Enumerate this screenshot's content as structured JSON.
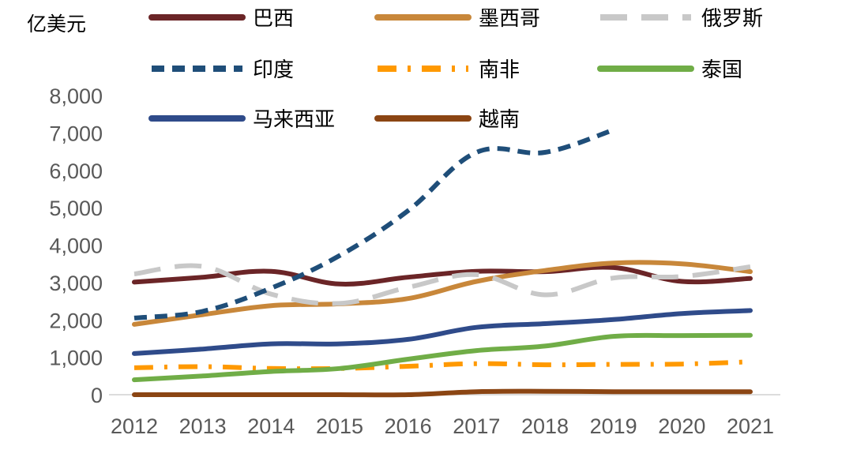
{
  "chart_data": {
    "type": "line",
    "title": "",
    "unit_label": "亿美元",
    "xlabel": "",
    "ylabel": "",
    "x": [
      "2012",
      "2013",
      "2014",
      "2015",
      "2016",
      "2017",
      "2018",
      "2019",
      "2020",
      "2021"
    ],
    "ylim": [
      0,
      8000
    ],
    "yticks": [
      0,
      1000,
      2000,
      3000,
      4000,
      5000,
      6000,
      7000,
      8000
    ],
    "ytick_labels": [
      "0",
      "1,000",
      "2,000",
      "3,000",
      "4,000",
      "5,000",
      "6,000",
      "7,000",
      "8,000"
    ],
    "grid": false,
    "legend_position": "top",
    "series": [
      {
        "name": "巴西",
        "color": "#6b2527",
        "dash": "solid",
        "values": [
          3010,
          3140,
          3300,
          2960,
          3140,
          3300,
          3290,
          3400,
          3030,
          3110
        ]
      },
      {
        "name": "墨西哥",
        "color": "#c8873a",
        "dash": "solid",
        "values": [
          1880,
          2140,
          2380,
          2430,
          2570,
          3030,
          3320,
          3520,
          3500,
          3290
        ]
      },
      {
        "name": "俄罗斯",
        "color": "#c8c8c8",
        "dash": "longdash",
        "values": [
          3230,
          3430,
          2690,
          2440,
          2870,
          3210,
          2670,
          3120,
          3160,
          3420
        ]
      },
      {
        "name": "印度",
        "color": "#1f4e79",
        "dash": "dash",
        "values": [
          2050,
          2230,
          2850,
          3720,
          4920,
          6480,
          6480,
          7080,
          null,
          null
        ]
      },
      {
        "name": "南非",
        "color": "#ff9900",
        "dash": "dashdot",
        "values": [
          720,
          750,
          700,
          700,
          760,
          830,
          800,
          810,
          820,
          880
        ]
      },
      {
        "name": "泰国",
        "color": "#70ad47",
        "dash": "solid",
        "values": [
          400,
          500,
          620,
          700,
          950,
          1180,
          1300,
          1560,
          1580,
          1590
        ]
      },
      {
        "name": "马来西亚",
        "color": "#2f4b8a",
        "dash": "solid",
        "values": [
          1100,
          1220,
          1360,
          1360,
          1480,
          1800,
          1900,
          2010,
          2170,
          2250
        ]
      },
      {
        "name": "越南",
        "color": "#8b4513",
        "dash": "solid",
        "values": [
          0,
          0,
          0,
          0,
          0,
          80,
          90,
          80,
          80,
          80
        ]
      }
    ]
  }
}
